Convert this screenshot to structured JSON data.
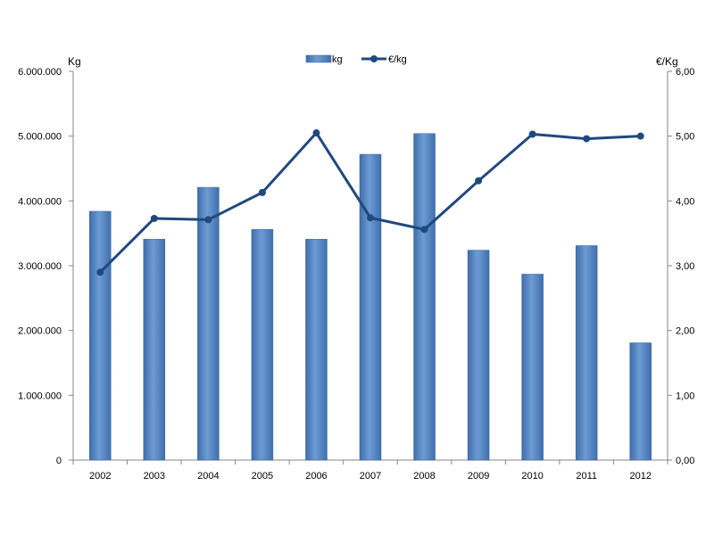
{
  "chart_data": {
    "type": "bar",
    "categories": [
      "2002",
      "2003",
      "2004",
      "2005",
      "2006",
      "2007",
      "2008",
      "2009",
      "2010",
      "2011",
      "2012"
    ],
    "series": [
      {
        "name": "kg",
        "type": "bar",
        "axis": "left",
        "color": "#5A8AC6",
        "values": [
          3840000,
          3410000,
          4210000,
          3560000,
          3410000,
          4720000,
          5040000,
          3240000,
          2870000,
          3310000,
          1810000
        ]
      },
      {
        "name": "€/kg",
        "type": "line",
        "axis": "right",
        "color": "#1F497D",
        "values": [
          2.9,
          3.73,
          3.71,
          4.13,
          5.05,
          3.74,
          3.56,
          4.31,
          5.03,
          4.96,
          5.0
        ]
      }
    ],
    "left_axis": {
      "label": "Kg",
      "ylim": [
        0,
        6000000
      ],
      "ticks": [
        "0",
        "1.000.000",
        "2.000.000",
        "3.000.000",
        "4.000.000",
        "5.000.000",
        "6.000.000"
      ]
    },
    "right_axis": {
      "label": "€/Kg",
      "ylim": [
        0,
        6
      ],
      "ticks": [
        "0,00",
        "1,00",
        "2,00",
        "3,00",
        "4,00",
        "5,00",
        "6,00"
      ]
    },
    "grid": false,
    "legend_position": "top-center"
  }
}
